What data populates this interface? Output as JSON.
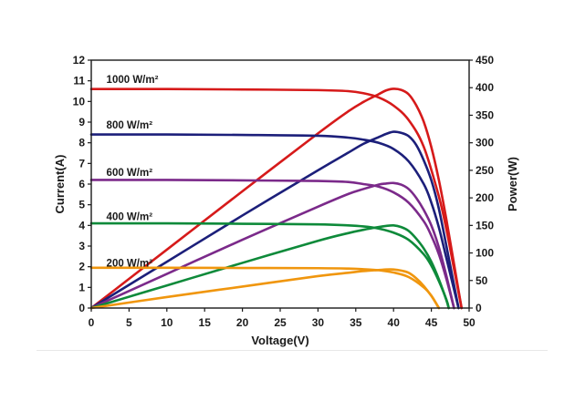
{
  "chart_data": {
    "type": "line",
    "title": "",
    "xlabel": "Voltage(V)",
    "ylabel_left": "Current(A)",
    "ylabel_right": "Power(W)",
    "xlim": [
      0,
      50
    ],
    "ylim_left": [
      0,
      12
    ],
    "ylim_right": [
      0,
      450
    ],
    "x_ticks": [
      "0",
      "5",
      "10",
      "15",
      "20",
      "25",
      "30",
      "35",
      "40",
      "45",
      "50"
    ],
    "y_left_ticks": [
      "0",
      "1",
      "2",
      "3",
      "4",
      "5",
      "6",
      "7",
      "8",
      "9",
      "10",
      "11",
      "12"
    ],
    "y_right_ticks": [
      "0",
      "50",
      "100",
      "150",
      "200",
      "250",
      "300",
      "350",
      "400",
      "450"
    ],
    "grid": false,
    "series": [
      {
        "name": "1000 W/m²",
        "color": "#d61a1a",
        "label_at": [
          2,
          10.9
        ],
        "iv": [
          [
            0,
            10.6
          ],
          [
            10,
            10.6
          ],
          [
            20,
            10.58
          ],
          [
            30,
            10.55
          ],
          [
            34,
            10.5
          ],
          [
            36,
            10.4
          ],
          [
            38,
            10.2
          ],
          [
            40,
            9.8
          ],
          [
            42,
            9.1
          ],
          [
            44,
            7.8
          ],
          [
            46,
            5.4
          ],
          [
            47,
            3.8
          ],
          [
            48,
            1.9
          ],
          [
            49,
            0
          ]
        ],
        "pv": [
          [
            0,
            0
          ],
          [
            10,
            106
          ],
          [
            20,
            212
          ],
          [
            30,
            317
          ],
          [
            34,
            357
          ],
          [
            36,
            374
          ],
          [
            38,
            388
          ],
          [
            39,
            395
          ],
          [
            40,
            398
          ],
          [
            41,
            396
          ],
          [
            42,
            388
          ],
          [
            43,
            368
          ],
          [
            44,
            338
          ],
          [
            45,
            292
          ],
          [
            46,
            232
          ],
          [
            47,
            160
          ],
          [
            48,
            80
          ],
          [
            49,
            0
          ]
        ]
      },
      {
        "name": "800 W/m²",
        "color": "#1c1f7a",
        "label_at": [
          2,
          8.7
        ],
        "iv": [
          [
            0,
            8.4
          ],
          [
            10,
            8.4
          ],
          [
            20,
            8.38
          ],
          [
            30,
            8.34
          ],
          [
            34,
            8.25
          ],
          [
            36,
            8.15
          ],
          [
            38,
            8.0
          ],
          [
            40,
            7.7
          ],
          [
            42,
            7.1
          ],
          [
            44,
            6.0
          ],
          [
            45,
            5.1
          ],
          [
            46,
            3.9
          ],
          [
            47,
            2.4
          ],
          [
            48,
            0.9
          ],
          [
            48.6,
            0
          ]
        ],
        "pv": [
          [
            0,
            0
          ],
          [
            10,
            84
          ],
          [
            20,
            168
          ],
          [
            30,
            250
          ],
          [
            34,
            282
          ],
          [
            36,
            298
          ],
          [
            38,
            310
          ],
          [
            39,
            316
          ],
          [
            40,
            320
          ],
          [
            41,
            318
          ],
          [
            42,
            312
          ],
          [
            43,
            296
          ],
          [
            44,
            268
          ],
          [
            45,
            232
          ],
          [
            46,
            180
          ],
          [
            47,
            112
          ],
          [
            48,
            42
          ],
          [
            48.6,
            0
          ]
        ]
      },
      {
        "name": "600 W/m²",
        "color": "#7b2a8a",
        "label_at": [
          2,
          6.4
        ],
        "iv": [
          [
            0,
            6.2
          ],
          [
            10,
            6.2
          ],
          [
            20,
            6.18
          ],
          [
            30,
            6.15
          ],
          [
            34,
            6.1
          ],
          [
            36,
            6.0
          ],
          [
            38,
            5.88
          ],
          [
            40,
            5.6
          ],
          [
            42,
            5.1
          ],
          [
            44,
            4.2
          ],
          [
            45,
            3.5
          ],
          [
            46,
            2.6
          ],
          [
            47,
            1.4
          ],
          [
            48,
            0
          ]
        ],
        "pv": [
          [
            0,
            0
          ],
          [
            10,
            62
          ],
          [
            20,
            124
          ],
          [
            30,
            184
          ],
          [
            34,
            207
          ],
          [
            36,
            216
          ],
          [
            38,
            224
          ],
          [
            39,
            226
          ],
          [
            40,
            227
          ],
          [
            41,
            224
          ],
          [
            42,
            216
          ],
          [
            43,
            200
          ],
          [
            44,
            178
          ],
          [
            45,
            150
          ],
          [
            46,
            110
          ],
          [
            47,
            58
          ],
          [
            48,
            0
          ]
        ]
      },
      {
        "name": "400 W/m²",
        "color": "#0e8a3a",
        "label_at": [
          2,
          4.25
        ],
        "iv": [
          [
            0,
            4.1
          ],
          [
            10,
            4.1
          ],
          [
            20,
            4.08
          ],
          [
            30,
            4.05
          ],
          [
            34,
            4.0
          ],
          [
            36,
            3.95
          ],
          [
            38,
            3.85
          ],
          [
            40,
            3.65
          ],
          [
            42,
            3.3
          ],
          [
            44,
            2.6
          ],
          [
            45,
            2.05
          ],
          [
            46,
            1.3
          ],
          [
            47,
            0.4
          ],
          [
            47.3,
            0
          ]
        ],
        "pv": [
          [
            0,
            0
          ],
          [
            10,
            41
          ],
          [
            20,
            82
          ],
          [
            30,
            122
          ],
          [
            34,
            136
          ],
          [
            36,
            142
          ],
          [
            38,
            147
          ],
          [
            39,
            149
          ],
          [
            40,
            150
          ],
          [
            41,
            147
          ],
          [
            42,
            140
          ],
          [
            43,
            126
          ],
          [
            44,
            108
          ],
          [
            45,
            84
          ],
          [
            46,
            52
          ],
          [
            47,
            14
          ],
          [
            47.3,
            0
          ]
        ]
      },
      {
        "name": "200 W/m²",
        "color": "#f0960e",
        "label_at": [
          2,
          2.0
        ],
        "iv": [
          [
            0,
            1.95
          ],
          [
            10,
            1.95
          ],
          [
            20,
            1.94
          ],
          [
            30,
            1.93
          ],
          [
            34,
            1.91
          ],
          [
            36,
            1.88
          ],
          [
            38,
            1.83
          ],
          [
            40,
            1.72
          ],
          [
            42,
            1.5
          ],
          [
            44,
            1.0
          ],
          [
            45,
            0.6
          ],
          [
            46,
            0
          ]
        ],
        "pv": [
          [
            0,
            0
          ],
          [
            10,
            20
          ],
          [
            20,
            39
          ],
          [
            30,
            58
          ],
          [
            34,
            64
          ],
          [
            36,
            67
          ],
          [
            38,
            69
          ],
          [
            39,
            70
          ],
          [
            40,
            70
          ],
          [
            41,
            68
          ],
          [
            42,
            64
          ],
          [
            43,
            54
          ],
          [
            44,
            40
          ],
          [
            45,
            22
          ],
          [
            46,
            0
          ]
        ]
      }
    ]
  }
}
